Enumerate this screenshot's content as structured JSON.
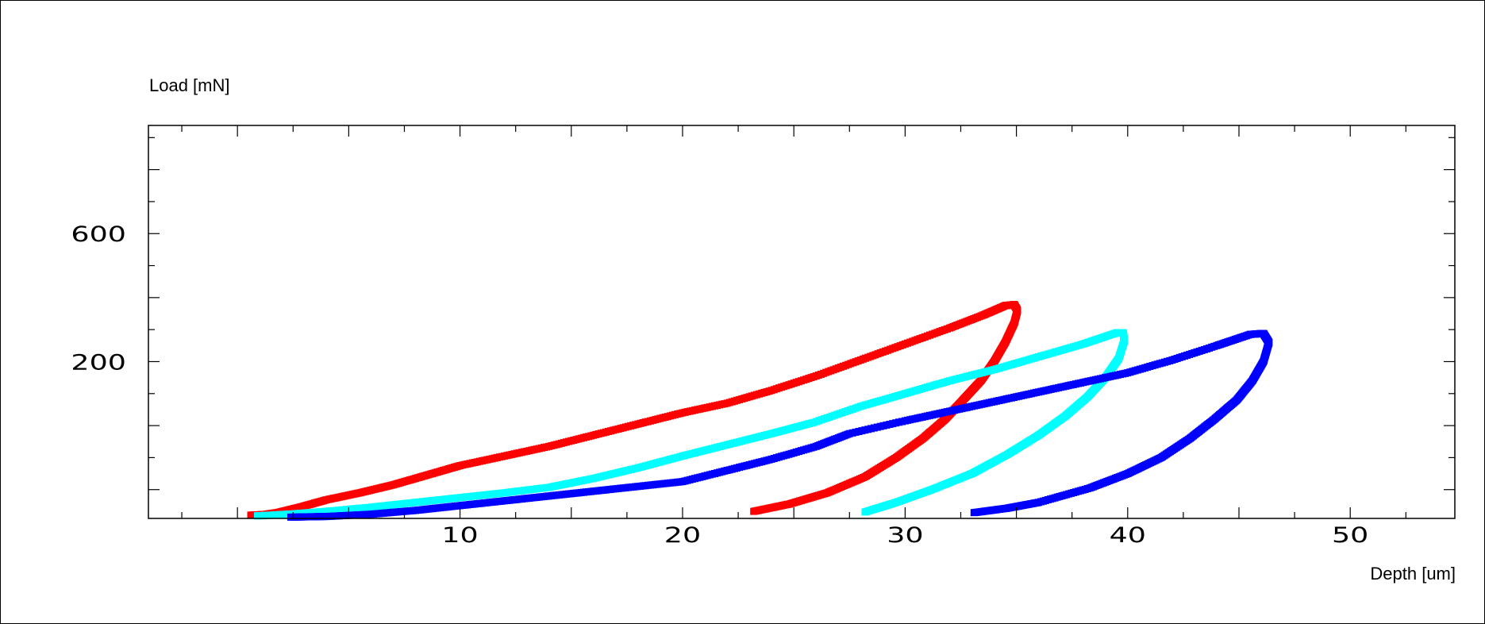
{
  "chart_data": {
    "type": "scatter",
    "xlabel": "Depth  [um]",
    "ylabel": "Load  [mN]",
    "xlim": [
      -4.0,
      54.7
    ],
    "ylim": [
      -290,
      938
    ],
    "x_ticks": [
      10,
      20,
      30,
      40,
      50
    ],
    "x_tick_labels": [
      "10",
      "20",
      "30",
      "40",
      "50"
    ],
    "y_ticks": [
      200,
      600
    ],
    "y_tick_labels": [
      "200",
      "600"
    ],
    "x_minor_step": 2.5,
    "y_minor_step": 100,
    "grid": false,
    "legend": "none",
    "series": [
      {
        "color": "#ff0000",
        "marker": "square",
        "loading": [
          [
            0.6,
            -280
          ],
          [
            1.2,
            -278
          ],
          [
            1.8,
            -272
          ],
          [
            2.8,
            -255
          ],
          [
            4.0,
            -232
          ],
          [
            5.5,
            -210
          ],
          [
            7.0,
            -185
          ],
          [
            8.5,
            -155
          ],
          [
            10.0,
            -125
          ],
          [
            12.0,
            -95
          ],
          [
            14.0,
            -65
          ],
          [
            16.0,
            -30
          ],
          [
            18.0,
            5
          ],
          [
            20.0,
            40
          ],
          [
            22.0,
            70
          ],
          [
            24.0,
            110
          ],
          [
            26.0,
            155
          ],
          [
            28.0,
            205
          ],
          [
            30.0,
            255
          ],
          [
            32.0,
            305
          ],
          [
            33.5,
            345
          ],
          [
            34.5,
            375
          ],
          [
            34.9,
            378
          ]
        ],
        "unloading": [
          [
            34.9,
            378
          ],
          [
            35.05,
            360
          ],
          [
            34.9,
            320
          ],
          [
            34.5,
            260
          ],
          [
            34.0,
            200
          ],
          [
            33.4,
            140
          ],
          [
            32.6,
            80
          ],
          [
            31.8,
            20
          ],
          [
            30.8,
            -40
          ],
          [
            29.6,
            -100
          ],
          [
            28.2,
            -160
          ],
          [
            26.5,
            -210
          ],
          [
            24.8,
            -245
          ],
          [
            23.2,
            -268
          ]
        ]
      },
      {
        "color": "#00ffff",
        "marker": "square",
        "loading": [
          [
            0.9,
            -282
          ],
          [
            1.5,
            -280
          ],
          [
            2.5,
            -276
          ],
          [
            4.0,
            -268
          ],
          [
            6.0,
            -255
          ],
          [
            8.0,
            -240
          ],
          [
            10.0,
            -225
          ],
          [
            12.0,
            -210
          ],
          [
            14.0,
            -193
          ],
          [
            16.0,
            -165
          ],
          [
            18.0,
            -132
          ],
          [
            20.0,
            -95
          ],
          [
            22.0,
            -60
          ],
          [
            24.0,
            -25
          ],
          [
            25.9,
            10
          ],
          [
            28.0,
            60
          ],
          [
            30.0,
            100
          ],
          [
            32.0,
            140
          ],
          [
            34.0,
            175
          ],
          [
            36.0,
            215
          ],
          [
            38.0,
            255
          ],
          [
            39.5,
            290
          ],
          [
            39.8,
            290
          ]
        ],
        "unloading": [
          [
            39.8,
            290
          ],
          [
            39.85,
            265
          ],
          [
            39.6,
            210
          ],
          [
            39.0,
            150
          ],
          [
            38.2,
            90
          ],
          [
            37.2,
            30
          ],
          [
            36.0,
            -30
          ],
          [
            34.6,
            -90
          ],
          [
            33.0,
            -150
          ],
          [
            31.2,
            -200
          ],
          [
            29.6,
            -240
          ],
          [
            28.2,
            -270
          ]
        ]
      },
      {
        "color": "#0000ff",
        "marker": "square",
        "loading": [
          [
            2.4,
            -286
          ],
          [
            4.0,
            -284
          ],
          [
            6.0,
            -277
          ],
          [
            8.0,
            -265
          ],
          [
            10.0,
            -250
          ],
          [
            12.0,
            -235
          ],
          [
            14.0,
            -220
          ],
          [
            16.0,
            -205
          ],
          [
            18.0,
            -190
          ],
          [
            20.0,
            -175
          ],
          [
            22.0,
            -140
          ],
          [
            24.0,
            -105
          ],
          [
            26.0,
            -65
          ],
          [
            27.5,
            -25
          ],
          [
            30.0,
            15
          ],
          [
            32.0,
            45
          ],
          [
            34.0,
            75
          ],
          [
            36.0,
            105
          ],
          [
            38.0,
            135
          ],
          [
            40.0,
            165
          ],
          [
            42.0,
            205
          ],
          [
            44.0,
            250
          ],
          [
            45.5,
            285
          ],
          [
            46.1,
            288
          ]
        ],
        "unloading": [
          [
            46.1,
            288
          ],
          [
            46.35,
            260
          ],
          [
            46.1,
            200
          ],
          [
            45.6,
            140
          ],
          [
            44.9,
            80
          ],
          [
            43.9,
            20
          ],
          [
            42.8,
            -40
          ],
          [
            41.5,
            -100
          ],
          [
            40.0,
            -150
          ],
          [
            38.3,
            -195
          ],
          [
            36.0,
            -240
          ],
          [
            34.6,
            -258
          ],
          [
            33.1,
            -272
          ]
        ]
      }
    ]
  }
}
